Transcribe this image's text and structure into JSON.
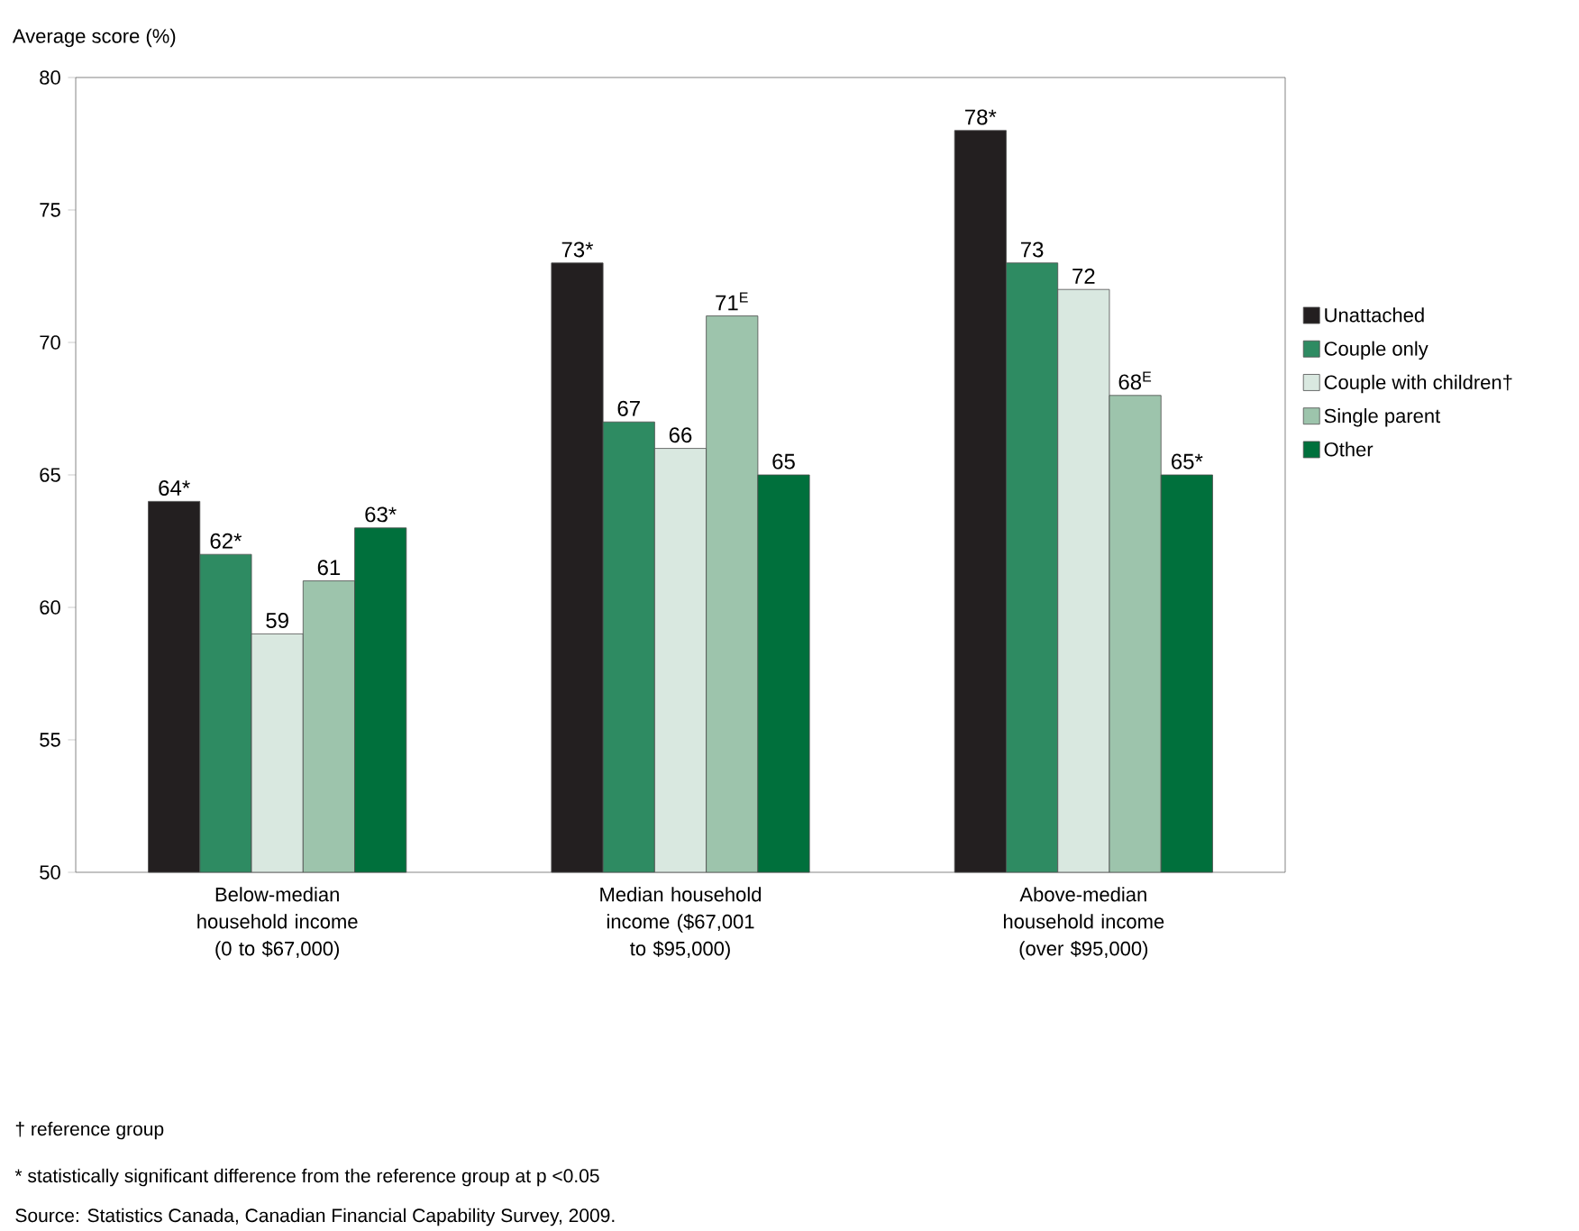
{
  "chart_data": {
    "type": "bar",
    "ylabel": "Average score (%)",
    "categories": [
      "Below-median household income (0 to $67,000)",
      "Median household income ($67,001 to $95,000)",
      "Above-median household income (over $95,000)"
    ],
    "series": [
      {
        "name": "Unattached",
        "color": "#231f20",
        "values": [
          64,
          73,
          78
        ],
        "value_labels": [
          "64*",
          "73*",
          "78*"
        ]
      },
      {
        "name": "Couple only",
        "color": "#2e8b62",
        "values": [
          62,
          67,
          73
        ],
        "value_labels": [
          "62*",
          "67",
          "73"
        ]
      },
      {
        "name": "Couple with children†",
        "color": "#d9e8e0",
        "values": [
          59,
          66,
          72
        ],
        "value_labels": [
          "59",
          "66",
          "72"
        ]
      },
      {
        "name": "Single parent",
        "color": "#9dc4ac",
        "values": [
          61,
          71,
          68
        ],
        "value_labels": [
          "61",
          "71$^{E}$",
          "68$^{E}$"
        ]
      },
      {
        "name": "Other",
        "color": "#00703c",
        "values": [
          63,
          65,
          65
        ],
        "value_labels": [
          "63*",
          "65",
          "65*"
        ]
      }
    ],
    "ylim": [
      50,
      80
    ],
    "yticks": [
      50,
      55,
      60,
      65,
      70,
      75,
      80
    ],
    "grid": false,
    "legend": "right",
    "annotations": [
      "† reference group",
      "* statistically significant difference from the reference group at p <0.05",
      "Source: Statistics Canada, Canadian Financial Capability Survey, 2009."
    ]
  }
}
